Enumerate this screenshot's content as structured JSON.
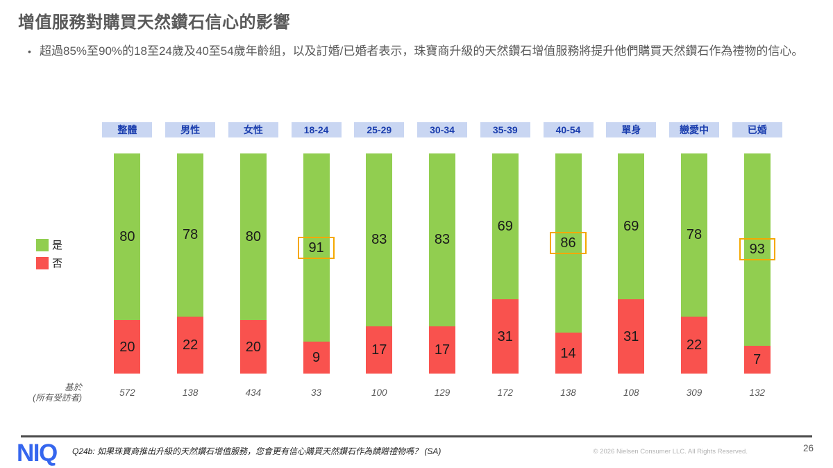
{
  "slide": {
    "title": "增值服務對購買天然鑽石信心的影響",
    "bullet": "超過85%至90%的18至24歲及40至54歲年齡組，以及訂婚/已婚者表示，珠寶商升級的天然鑽石增值服務將提升他們購買天然鑽石作為禮物的信心。",
    "footnote": "Q24b: 如果珠寶商推出升級的天然鑽石增值服務，您會更有信心購買天然鑽石作為饋贈禮物嗎？ (SA)",
    "copyright": "© 2026 Nielsen Consumer LLC. All Rights Reserved.",
    "page_number": "26",
    "logo_text": "NIQ"
  },
  "chart_data": {
    "type": "bar",
    "subtype": "stacked-100-percent-vertical",
    "categories": [
      "整體",
      "男性",
      "女性",
      "18-24",
      "25-29",
      "30-34",
      "35-39",
      "40-54",
      "單身",
      "戀愛中",
      "已婚"
    ],
    "series": [
      {
        "name": "是",
        "color": "#91CE50",
        "values": [
          80,
          78,
          80,
          91,
          83,
          83,
          69,
          86,
          69,
          78,
          93
        ]
      },
      {
        "name": "否",
        "color": "#F9524E",
        "values": [
          20,
          22,
          20,
          9,
          17,
          17,
          31,
          14,
          31,
          22,
          7
        ]
      }
    ],
    "bases": [
      572,
      138,
      434,
      33,
      100,
      129,
      172,
      138,
      108,
      309,
      132
    ],
    "base_label_line1": "基於",
    "base_label_line2": "(所有受訪者)",
    "highlighted_categories": [
      "18-24",
      "40-54",
      "已婚"
    ],
    "highlight_color": "#F5A800",
    "legend_position": "left",
    "ylim": [
      0,
      100
    ],
    "grid": false,
    "category_chip_bg": "#C9D6F2",
    "category_chip_text_color": "#1B3EAE"
  }
}
